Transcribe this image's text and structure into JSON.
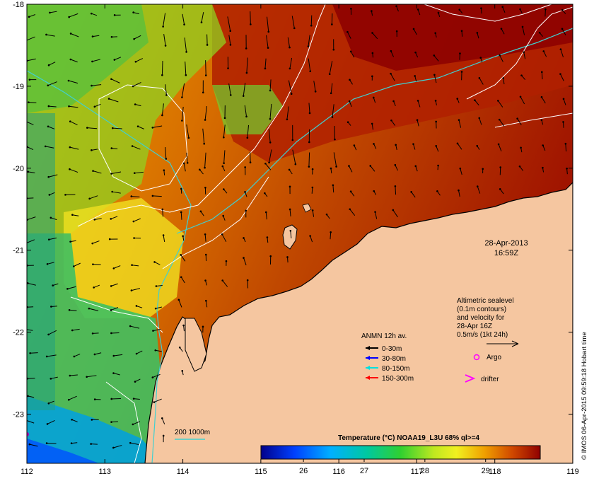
{
  "map": {
    "lon_ticks": [
      "112",
      "113",
      "114",
      "115",
      "116",
      "117",
      "118",
      "119"
    ],
    "lat_ticks": [
      "-18",
      "-19",
      "-20",
      "-21",
      "-22",
      "-23"
    ],
    "lon_range": [
      112,
      119
    ],
    "lat_range": [
      -23.6,
      -18
    ],
    "land_color": "#f5c6a0",
    "sst_palette": [
      "#00008b",
      "#0050ff",
      "#00c8ff",
      "#00c864",
      "#7fe020",
      "#f0f020",
      "#f0a000",
      "#d05000",
      "#a00000"
    ]
  },
  "date": {
    "line1": "28-Apr-2013",
    "line2": "16:59Z"
  },
  "altimetry_note": {
    "line1": "Altimetric sealevel",
    "line2": "(0.1m contours)",
    "line3": "and velocity for",
    "line4": "28-Apr 16Z",
    "line5": "0.5m/s (1kt 24h)"
  },
  "mooring_legend": {
    "title": "ANMN 12h av.",
    "items": [
      {
        "label": "0-30m",
        "color": "#000000"
      },
      {
        "label": "30-80m",
        "color": "#0000ff"
      },
      {
        "label": "80-150m",
        "color": "#00e0e0"
      },
      {
        "label": "150-300m",
        "color": "#ff0000"
      }
    ]
  },
  "markers": {
    "argo": "Argo",
    "drifter": "drifter",
    "argo_color": "#ff00ff",
    "drifter_color": "#ff00ff"
  },
  "isobath_label": "200  1000m",
  "isobath_color": "#40d0d0",
  "colorbar": {
    "title": "Temperature (°C) NOAA19_L3U 68% ql>=4",
    "ticks": [
      "26",
      "27",
      "28",
      "29"
    ],
    "range": [
      25.3,
      29.9
    ]
  },
  "credit": "© IMOS 06-Apr-2015 09:59:18 Hobart time"
}
